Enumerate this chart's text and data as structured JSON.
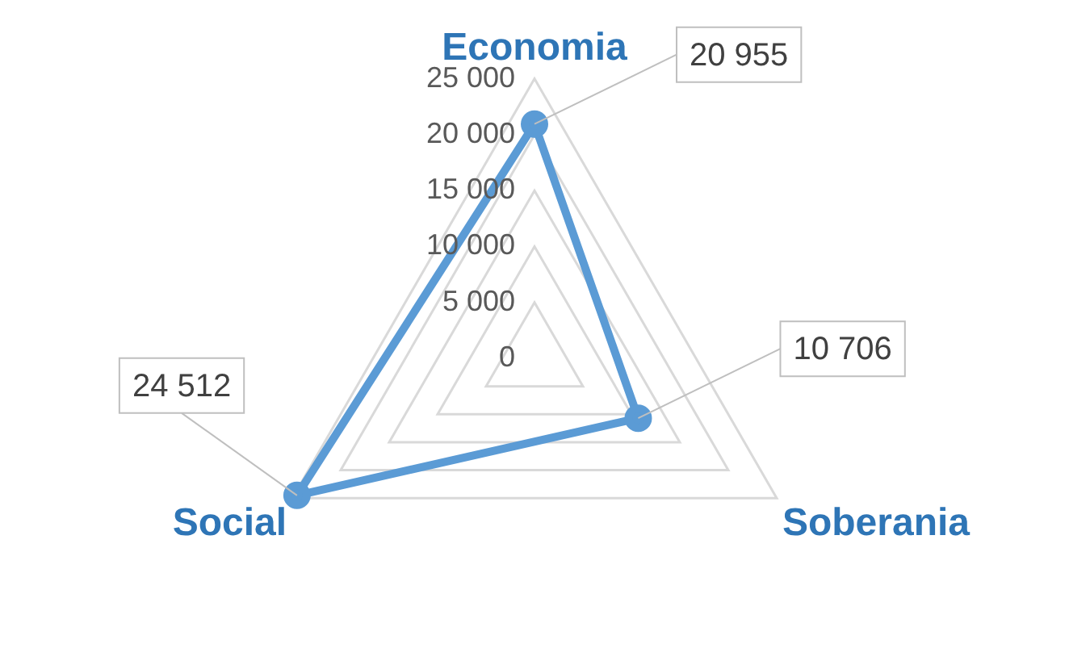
{
  "chart_data": {
    "type": "radar",
    "categories": [
      "Economia",
      "Soberania",
      "Social"
    ],
    "series": [
      {
        "color": "#5b9bd5",
        "values": [
          20955,
          10706,
          24512
        ],
        "value_labels": [
          "20 955",
          "10 706",
          "24 512"
        ]
      }
    ],
    "ylim": [
      0,
      25000
    ],
    "yticks": [
      0,
      {
        "value": 5000,
        "label": "5 000"
      },
      {
        "value": 10000,
        "label": "10 000"
      },
      {
        "value": 15000,
        "label": "15 000"
      },
      {
        "value": 20000,
        "label": "20 000"
      },
      {
        "value": 25000,
        "label": "25 000"
      }
    ],
    "grid": true,
    "marker": "circle",
    "legend": false
  }
}
